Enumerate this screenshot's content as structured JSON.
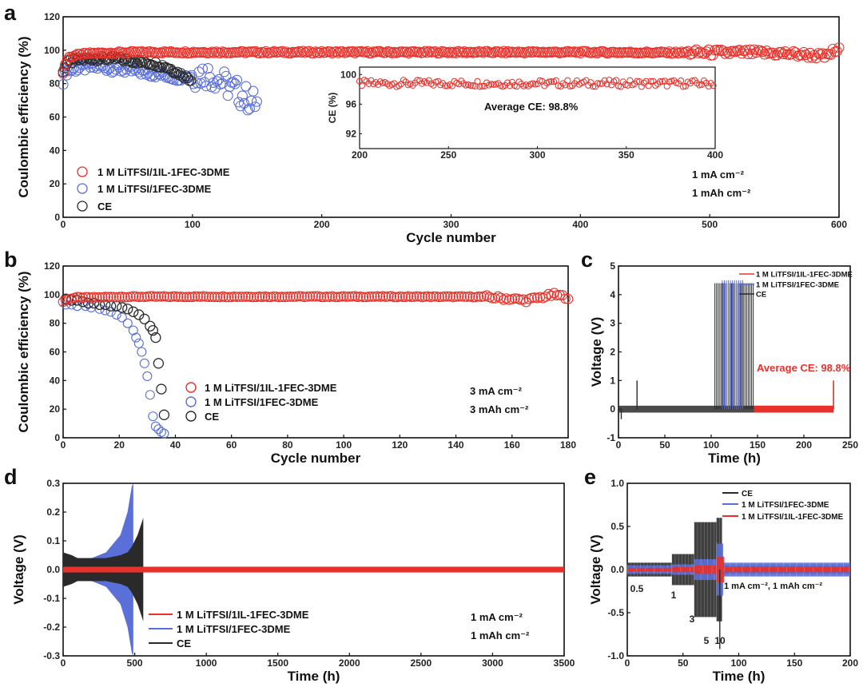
{
  "colors": {
    "red": "#e8312a",
    "blue": "#5a6fd8",
    "dark": "#2a2a2a",
    "pale_red": "#f2b7b0"
  },
  "chart_data": [
    {
      "id": "a",
      "type": "scatter",
      "panel_label": "a",
      "xlabel": "Cycle number",
      "ylabel": "Coulombic efficiency (%)",
      "xlim": [
        0,
        600
      ],
      "ylim": [
        0,
        120
      ],
      "xticks": [
        0,
        100,
        200,
        300,
        400,
        500,
        600
      ],
      "yticks": [
        0,
        20,
        40,
        60,
        80,
        100,
        120
      ],
      "series": [
        {
          "name": "1 M LiTFSI/1IL-1FEC-3DME",
          "color": "red",
          "x": [
            0,
            2,
            5,
            10,
            20,
            40,
            60,
            80,
            100,
            150,
            200,
            250,
            300,
            350,
            400,
            450,
            500,
            530,
            560,
            580,
            590,
            595,
            600
          ],
          "y": [
            86,
            93,
            96,
            97,
            98,
            98.5,
            98.8,
            98.8,
            98.8,
            98.8,
            98.8,
            98.8,
            98.8,
            98.8,
            98.8,
            98.6,
            98.5,
            98.5,
            98,
            97,
            96,
            99,
            100
          ]
        },
        {
          "name": "1 M LiTFSI/1FEC-3DME",
          "color": "blue",
          "x": [
            0,
            2,
            5,
            10,
            20,
            30,
            40,
            50,
            60,
            70,
            80,
            90,
            100,
            110,
            120,
            125,
            130,
            135,
            140,
            145,
            150
          ],
          "y": [
            82,
            87,
            88,
            89,
            90,
            90,
            89,
            88,
            87,
            86,
            85,
            84,
            85,
            86,
            83,
            80,
            77,
            75,
            72,
            70,
            68
          ]
        },
        {
          "name": "CE",
          "color": "dark",
          "x": [
            0,
            2,
            5,
            10,
            20,
            30,
            40,
            50,
            60,
            70,
            80,
            90,
            95,
            100
          ],
          "y": [
            88,
            91,
            93,
            94,
            95,
            95,
            95,
            94,
            93,
            92,
            90,
            86,
            84,
            82
          ]
        }
      ],
      "legend": [
        "1 M LiTFSI/1IL-1FEC-3DME",
        "1 M LiTFSI/1FEC-3DME",
        "CE"
      ],
      "annotations": [
        "1 mA cm⁻²",
        "1 mAh cm⁻²"
      ],
      "inset": {
        "xlim": [
          200,
          400
        ],
        "ylim": [
          90,
          101
        ],
        "xticks": [
          200,
          250,
          300,
          350,
          400
        ],
        "yticks": [
          92,
          96,
          100
        ],
        "ylabel": "CE (%)",
        "mean": 98.8,
        "annotation": "Average CE: 98.8%"
      }
    },
    {
      "id": "b",
      "type": "scatter",
      "panel_label": "b",
      "xlabel": "Cycle number",
      "ylabel": "Coulombic efficiency (%)",
      "xlim": [
        0,
        180
      ],
      "ylim": [
        0,
        120
      ],
      "xticks": [
        0,
        20,
        40,
        60,
        80,
        100,
        120,
        140,
        160,
        180
      ],
      "yticks": [
        0,
        20,
        40,
        60,
        80,
        100,
        120
      ],
      "series": [
        {
          "name": "1 M LiTFSI/1IL-1FEC-3DME",
          "color": "red",
          "x": [
            0,
            2,
            5,
            10,
            20,
            40,
            60,
            80,
            100,
            120,
            140,
            150,
            160,
            165,
            170,
            175,
            180
          ],
          "y": [
            95,
            97,
            98,
            98,
            98.5,
            98.6,
            98.6,
            98.6,
            98.6,
            98.6,
            98.5,
            98.5,
            97,
            96,
            98,
            100,
            98
          ]
        },
        {
          "name": "1 M LiTFSI/1FEC-3DME",
          "color": "blue",
          "x": [
            1,
            3,
            5,
            8,
            10,
            13,
            15,
            17,
            19,
            21,
            23,
            25,
            26,
            27,
            28,
            29,
            30,
            31,
            32,
            33,
            34,
            35,
            36
          ],
          "y": [
            93,
            93,
            92,
            92,
            91,
            90,
            89,
            88,
            86,
            84,
            80,
            75,
            70,
            66,
            60,
            52,
            43,
            30,
            15,
            8,
            6,
            4,
            3
          ]
        },
        {
          "name": "CE",
          "color": "dark",
          "x": [
            1,
            3,
            5,
            7,
            9,
            11,
            13,
            15,
            17,
            19,
            21,
            23,
            25,
            27,
            29,
            31,
            32,
            33,
            34,
            35,
            36
          ],
          "y": [
            97,
            96,
            96,
            95,
            94,
            94,
            93,
            93,
            92,
            92,
            91,
            90,
            88,
            86,
            83,
            78,
            75,
            70,
            52,
            34,
            16
          ]
        }
      ],
      "legend": [
        "1 M LiTFSI/1IL-1FEC-3DME",
        "1 M LiTFSI/1FEC-3DME",
        "CE"
      ],
      "annotations": [
        "3 mA cm⁻²",
        "3 mAh cm⁻²"
      ]
    },
    {
      "id": "c",
      "type": "line",
      "panel_label": "c",
      "xlabel": "Time (h)",
      "ylabel": "Voltage (V)",
      "xlim": [
        0,
        250
      ],
      "ylim": [
        -1,
        5
      ],
      "xticks": [
        0,
        50,
        100,
        150,
        200,
        250
      ],
      "yticks": [
        -1,
        0,
        1,
        2,
        3,
        4,
        5
      ],
      "series": [
        {
          "name": "1 M LiTFSI/1IL-1FEC-3DME",
          "color": "red",
          "x": [
            0,
            232
          ],
          "y": [
            0,
            0
          ],
          "end_spike": 1.0
        },
        {
          "name": "1 M LiTFSI/1FEC-3DME",
          "color": "blue",
          "spike_start_h": 112,
          "spike_end_h": 134,
          "spike_v": 4.5
        },
        {
          "name": "CE",
          "color": "dark",
          "spike_start_h": 104,
          "spike_end_h": 146,
          "spike_v": 4.4
        }
      ],
      "legend": [
        "1 M LiTFSI/1IL-1FEC-3DME",
        "1 M LiTFSI/1FEC-3DME",
        "CE"
      ],
      "annotation": "Average CE: 98.8%"
    },
    {
      "id": "d",
      "type": "line",
      "panel_label": "d",
      "xlabel": "Time (h)",
      "ylabel": "Voltage (V)",
      "xlim": [
        0,
        3500
      ],
      "ylim": [
        -0.3,
        0.3
      ],
      "xticks": [
        0,
        500,
        1000,
        1500,
        2000,
        2500,
        3000,
        3500
      ],
      "yticks": [
        -0.3,
        -0.2,
        -0.1,
        0.0,
        0.1,
        0.2,
        0.3
      ],
      "series": [
        {
          "name": "1 M LiTFSI/1IL-1FEC-3DME",
          "color": "red",
          "x": [
            0,
            3500
          ],
          "amplitude": 0.01
        },
        {
          "name": "1 M LiTFSI/1FEC-3DME",
          "color": "blue",
          "x": [
            0,
            60,
            100,
            200,
            300,
            400,
            450,
            480,
            490
          ],
          "amplitude": [
            0.05,
            0.05,
            0.04,
            0.04,
            0.06,
            0.12,
            0.2,
            0.29,
            0.3
          ]
        },
        {
          "name": "CE",
          "color": "dark",
          "x": [
            0,
            60,
            100,
            200,
            300,
            400,
            450,
            480,
            520,
            560
          ],
          "amplitude": [
            0.06,
            0.05,
            0.04,
            0.04,
            0.04,
            0.05,
            0.06,
            0.08,
            0.12,
            0.18
          ]
        }
      ],
      "legend": [
        "1 M LiTFSI/1IL-1FEC-3DME",
        "1 M LiTFSI/1FEC-3DME",
        "CE"
      ],
      "annotations": [
        "1 mA cm⁻²",
        "1 mAh cm⁻²"
      ]
    },
    {
      "id": "e",
      "type": "line",
      "panel_label": "e",
      "xlabel": "Time (h)",
      "ylabel": "Voltage (V)",
      "xlim": [
        0,
        200
      ],
      "ylim": [
        -1.0,
        1.0
      ],
      "xticks": [
        0,
        50,
        100,
        150,
        200
      ],
      "yticks": [
        -1.0,
        -0.5,
        0.0,
        0.5,
        1.0
      ],
      "series": [
        {
          "name": "CE",
          "color": "dark",
          "segments": [
            [
              0,
              40,
              0.08
            ],
            [
              40,
              60,
              0.18
            ],
            [
              60,
              80,
              0.55
            ],
            [
              80,
              85,
              0.6
            ],
            [
              85,
              200,
              0.05
            ]
          ]
        },
        {
          "name": "1 M LiTFSI/1FEC-3DME",
          "color": "blue",
          "segments": [
            [
              0,
              40,
              0.05
            ],
            [
              40,
              60,
              0.06
            ],
            [
              60,
              80,
              0.12
            ],
            [
              80,
              86,
              0.3
            ],
            [
              86,
              200,
              0.08
            ]
          ]
        },
        {
          "name": "1 M LiTFSI/1IL-1FEC-3DME",
          "color": "red",
          "segments": [
            [
              0,
              40,
              0.02
            ],
            [
              40,
              60,
              0.03
            ],
            [
              60,
              80,
              0.05
            ],
            [
              80,
              87,
              0.15
            ],
            [
              87,
              200,
              0.03
            ]
          ]
        }
      ],
      "legend": [
        "CE",
        "1 M LiTFSI/1FEC-3DME",
        "1 M LiTFSI/1IL-1FEC-3DME"
      ],
      "rate_labels": [
        "0.5",
        "1",
        "3",
        "5",
        "10"
      ],
      "annotation": "1 mA cm⁻², 1 mAh cm⁻²"
    }
  ]
}
